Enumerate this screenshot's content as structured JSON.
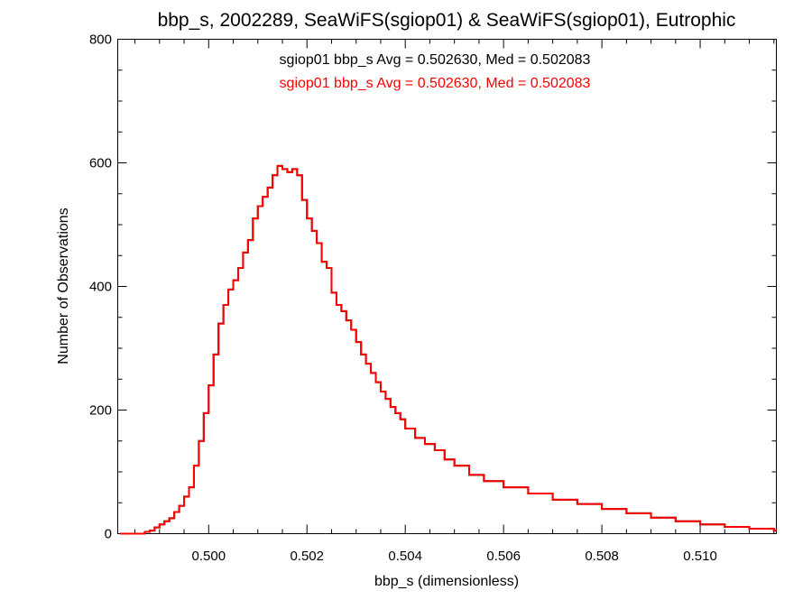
{
  "chart_data": {
    "type": "histogram",
    "title": "bbp_s, 2002289, SeaWiFS(sgiop01) & SeaWiFS(sgiop01), Eutrophic",
    "xlabel": "bbp_s (dimensionless)",
    "ylabel": "Number of Observations",
    "xlim": [
      0.49815,
      0.51155
    ],
    "ylim": [
      0,
      800
    ],
    "x_ticks": [
      {
        "value": 0.5,
        "label": "0.500"
      },
      {
        "value": 0.502,
        "label": "0.502"
      },
      {
        "value": 0.504,
        "label": "0.504"
      },
      {
        "value": 0.506,
        "label": "0.506"
      },
      {
        "value": 0.508,
        "label": "0.508"
      },
      {
        "value": 0.51,
        "label": "0.510"
      }
    ],
    "y_ticks": [
      {
        "value": 0,
        "label": "0"
      },
      {
        "value": 200,
        "label": "200"
      },
      {
        "value": 400,
        "label": "400"
      },
      {
        "value": 600,
        "label": "600"
      },
      {
        "value": 800,
        "label": "800"
      }
    ],
    "x_minor_step": 0.0005,
    "y_minor_step": 50,
    "annotations": [
      {
        "text": "sgiop01 bbp_s Avg = 0.502630, Med = 0.502083",
        "color": "#000000"
      },
      {
        "text": "sgiop01 bbp_s Avg = 0.502630, Med = 0.502083",
        "color": "#ff0000"
      }
    ],
    "series": [
      {
        "color": "#000000",
        "x": [
          0.4982,
          0.4986,
          0.4987,
          0.4988,
          0.4989,
          0.499,
          0.4991,
          0.4992,
          0.4993,
          0.4994,
          0.4995,
          0.4996,
          0.4997,
          0.4998,
          0.4999,
          0.5,
          0.5001,
          0.5002,
          0.5003,
          0.5004,
          0.5005,
          0.5006,
          0.5007,
          0.5008,
          0.5009,
          0.501,
          0.5011,
          0.5012,
          0.5013,
          0.5014,
          0.5015,
          0.5016,
          0.5017,
          0.5018,
          0.5019,
          0.502,
          0.5021,
          0.5022,
          0.5023,
          0.5024,
          0.5025,
          0.5026,
          0.5027,
          0.5028,
          0.5029,
          0.503,
          0.5031,
          0.5032,
          0.5033,
          0.5034,
          0.5035,
          0.5036,
          0.5037,
          0.5038,
          0.5039,
          0.504,
          0.5042,
          0.5044,
          0.5046,
          0.5048,
          0.505,
          0.5053,
          0.5056,
          0.506,
          0.5065,
          0.507,
          0.5075,
          0.508,
          0.5085,
          0.509,
          0.5095,
          0.51,
          0.5105,
          0.511,
          0.5115
        ],
        "y": [
          0,
          0,
          3,
          5,
          10,
          15,
          20,
          25,
          35,
          45,
          60,
          75,
          110,
          150,
          195,
          240,
          290,
          340,
          370,
          395,
          410,
          430,
          455,
          475,
          510,
          530,
          545,
          560,
          580,
          595,
          590,
          585,
          590,
          580,
          540,
          510,
          490,
          470,
          440,
          430,
          390,
          370,
          360,
          345,
          330,
          310,
          290,
          275,
          260,
          245,
          230,
          218,
          205,
          195,
          185,
          170,
          155,
          145,
          135,
          120,
          110,
          95,
          85,
          75,
          65,
          55,
          48,
          40,
          33,
          26,
          20,
          15,
          11,
          8,
          5
        ]
      },
      {
        "color": "#ff0000",
        "x": [
          0.4982,
          0.4986,
          0.4987,
          0.4988,
          0.4989,
          0.499,
          0.4991,
          0.4992,
          0.4993,
          0.4994,
          0.4995,
          0.4996,
          0.4997,
          0.4998,
          0.4999,
          0.5,
          0.5001,
          0.5002,
          0.5003,
          0.5004,
          0.5005,
          0.5006,
          0.5007,
          0.5008,
          0.5009,
          0.501,
          0.5011,
          0.5012,
          0.5013,
          0.5014,
          0.5015,
          0.5016,
          0.5017,
          0.5018,
          0.5019,
          0.502,
          0.5021,
          0.5022,
          0.5023,
          0.5024,
          0.5025,
          0.5026,
          0.5027,
          0.5028,
          0.5029,
          0.503,
          0.5031,
          0.5032,
          0.5033,
          0.5034,
          0.5035,
          0.5036,
          0.5037,
          0.5038,
          0.5039,
          0.504,
          0.5042,
          0.5044,
          0.5046,
          0.5048,
          0.505,
          0.5053,
          0.5056,
          0.506,
          0.5065,
          0.507,
          0.5075,
          0.508,
          0.5085,
          0.509,
          0.5095,
          0.51,
          0.5105,
          0.511,
          0.5115
        ],
        "y": [
          0,
          0,
          3,
          5,
          10,
          15,
          20,
          25,
          35,
          45,
          60,
          75,
          110,
          150,
          195,
          240,
          290,
          340,
          370,
          395,
          410,
          430,
          455,
          475,
          510,
          530,
          545,
          560,
          580,
          595,
          590,
          585,
          590,
          580,
          540,
          510,
          490,
          470,
          440,
          430,
          390,
          370,
          360,
          345,
          330,
          310,
          290,
          275,
          260,
          245,
          230,
          218,
          205,
          195,
          185,
          170,
          155,
          145,
          135,
          120,
          110,
          95,
          85,
          75,
          65,
          55,
          48,
          40,
          33,
          26,
          20,
          15,
          11,
          8,
          5
        ]
      }
    ]
  }
}
